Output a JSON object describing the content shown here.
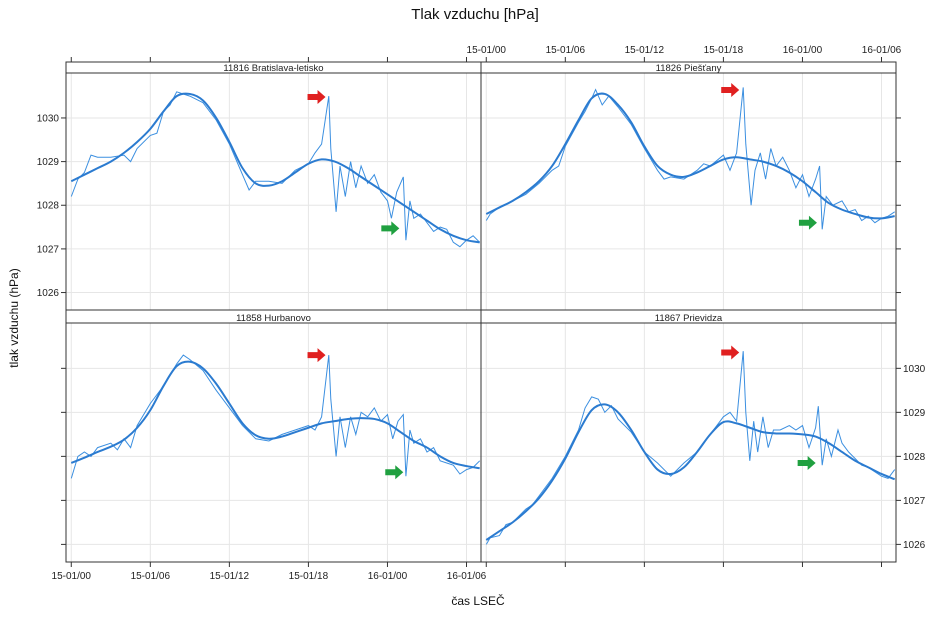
{
  "chart_data": {
    "type": "line",
    "title": "Tlak vzduchu [hPa]",
    "xlabel": "čas LSEČ",
    "ylabel": "tlak vzduchu (hPa)",
    "x_unit": "hours since 15-01/00",
    "xlim": [
      -0.4,
      31.1
    ],
    "ylim": [
      1025.6,
      1031.03
    ],
    "grid": true,
    "x_ticks": [
      0,
      6,
      12,
      18,
      24,
      30
    ],
    "x_tick_labels": [
      "15-01/00",
      "15-01/06",
      "15-01/12",
      "15-01/18",
      "16-01/00",
      "16-01/06"
    ],
    "y_ticks": [
      1026,
      1027,
      1028,
      1029,
      1030
    ],
    "y_tick_labels": [
      "1026",
      "1027",
      "1028",
      "1029",
      "1030"
    ],
    "colors": {
      "raw": "#3b8fe0",
      "smooth": "#2b7bd0",
      "arrow_up_event": "#e02020",
      "arrow_down_event": "#20a040"
    },
    "panels": [
      {
        "name": "11816 Bratislava-letisko",
        "smooth": [
          1028.55,
          1028.7,
          1028.85,
          1029.0,
          1029.2,
          1029.45,
          1029.75,
          1030.15,
          1030.5,
          1030.55,
          1030.4,
          1030.0,
          1029.45,
          1028.85,
          1028.5,
          1028.45,
          1028.55,
          1028.75,
          1028.95,
          1029.05,
          1029.0,
          1028.85,
          1028.65,
          1028.45,
          1028.25,
          1028.05,
          1027.85,
          1027.65,
          1027.45,
          1027.3,
          1027.2,
          1027.15
        ],
        "raw": [
          [
            0,
            1028.2
          ],
          [
            0.5,
            1028.6
          ],
          [
            1,
            1028.75
          ],
          [
            1.5,
            1029.15
          ],
          [
            2,
            1029.1
          ],
          [
            3,
            1029.1
          ],
          [
            4,
            1029.15
          ],
          [
            4.5,
            1029.0
          ],
          [
            5,
            1029.3
          ],
          [
            6,
            1029.6
          ],
          [
            6.5,
            1029.65
          ],
          [
            7,
            1030.15
          ],
          [
            7.5,
            1030.3
          ],
          [
            8,
            1030.6
          ],
          [
            8.5,
            1030.55
          ],
          [
            9,
            1030.5
          ],
          [
            10,
            1030.35
          ],
          [
            11,
            1029.95
          ],
          [
            12,
            1029.4
          ],
          [
            13,
            1028.7
          ],
          [
            13.5,
            1028.35
          ],
          [
            14,
            1028.55
          ],
          [
            15,
            1028.55
          ],
          [
            16,
            1028.5
          ],
          [
            17,
            1028.8
          ],
          [
            18,
            1028.95
          ],
          [
            18.5,
            1029.2
          ],
          [
            19,
            1029.4
          ],
          [
            19.55,
            1030.5
          ],
          [
            19.7,
            1029.3
          ],
          [
            20.1,
            1027.85
          ],
          [
            20.4,
            1028.9
          ],
          [
            20.8,
            1028.2
          ],
          [
            21.2,
            1029.0
          ],
          [
            21.6,
            1028.4
          ],
          [
            22,
            1028.9
          ],
          [
            22.5,
            1028.5
          ],
          [
            23,
            1028.7
          ],
          [
            23.5,
            1028.3
          ],
          [
            24,
            1028.1
          ],
          [
            24.3,
            1027.7
          ],
          [
            24.7,
            1028.3
          ],
          [
            25.2,
            1028.65
          ],
          [
            25.4,
            1027.2
          ],
          [
            25.7,
            1028.1
          ],
          [
            26,
            1027.7
          ],
          [
            26.5,
            1027.8
          ],
          [
            27,
            1027.6
          ],
          [
            27.5,
            1027.4
          ],
          [
            28,
            1027.5
          ],
          [
            28.5,
            1027.45
          ],
          [
            29,
            1027.15
          ],
          [
            29.5,
            1027.05
          ],
          [
            30,
            1027.2
          ],
          [
            30.5,
            1027.3
          ],
          [
            31,
            1027.15
          ]
        ],
        "red_arrow": [
          19.3,
          1030.48
        ],
        "green_arrow": [
          24.9,
          1027.47
        ]
      },
      {
        "name": "11826 Piešťany",
        "smooth": [
          1027.8,
          1027.95,
          1028.1,
          1028.3,
          1028.55,
          1028.9,
          1029.4,
          1029.95,
          1030.45,
          1030.55,
          1030.3,
          1029.9,
          1029.35,
          1028.9,
          1028.7,
          1028.65,
          1028.75,
          1028.9,
          1029.05,
          1029.1,
          1029.05,
          1029.0,
          1028.9,
          1028.75,
          1028.55,
          1028.3,
          1028.05,
          1027.9,
          1027.8,
          1027.72,
          1027.7,
          1027.75
        ],
        "raw": [
          [
            0,
            1027.65
          ],
          [
            0.3,
            1027.8
          ],
          [
            1,
            1027.95
          ],
          [
            2,
            1028.1
          ],
          [
            3,
            1028.25
          ],
          [
            4,
            1028.5
          ],
          [
            5,
            1028.8
          ],
          [
            5.5,
            1028.9
          ],
          [
            6,
            1029.35
          ],
          [
            7,
            1029.9
          ],
          [
            7.5,
            1030.15
          ],
          [
            8,
            1030.45
          ],
          [
            8.3,
            1030.65
          ],
          [
            8.8,
            1030.3
          ],
          [
            9.3,
            1030.5
          ],
          [
            10,
            1030.25
          ],
          [
            11,
            1029.85
          ],
          [
            12,
            1029.3
          ],
          [
            13,
            1028.8
          ],
          [
            13.5,
            1028.6
          ],
          [
            14,
            1028.65
          ],
          [
            15,
            1028.6
          ],
          [
            16,
            1028.8
          ],
          [
            16.5,
            1028.95
          ],
          [
            17,
            1028.9
          ],
          [
            18,
            1029.15
          ],
          [
            18.5,
            1028.8
          ],
          [
            19,
            1029.2
          ],
          [
            19.5,
            1030.7
          ],
          [
            19.7,
            1029.4
          ],
          [
            20.1,
            1028.0
          ],
          [
            20.4,
            1028.8
          ],
          [
            20.8,
            1029.2
          ],
          [
            21.2,
            1028.6
          ],
          [
            21.6,
            1029.3
          ],
          [
            22,
            1028.9
          ],
          [
            22.5,
            1029.1
          ],
          [
            23,
            1028.8
          ],
          [
            23.5,
            1028.4
          ],
          [
            24,
            1028.7
          ],
          [
            24.5,
            1028.2
          ],
          [
            25,
            1028.6
          ],
          [
            25.3,
            1028.9
          ],
          [
            25.5,
            1027.45
          ],
          [
            25.8,
            1028.2
          ],
          [
            26.3,
            1028.0
          ],
          [
            27,
            1028.1
          ],
          [
            27.5,
            1027.85
          ],
          [
            28,
            1027.9
          ],
          [
            28.5,
            1027.65
          ],
          [
            29,
            1027.75
          ],
          [
            29.5,
            1027.6
          ],
          [
            30,
            1027.7
          ],
          [
            30.5,
            1027.75
          ],
          [
            31,
            1027.85
          ]
        ],
        "red_arrow": [
          19.2,
          1030.64
        ],
        "green_arrow": [
          25.1,
          1027.6
        ]
      },
      {
        "name": "11858 Hurbanovo",
        "smooth": [
          1027.85,
          1027.97,
          1028.1,
          1028.22,
          1028.38,
          1028.65,
          1029.05,
          1029.6,
          1030.05,
          1030.15,
          1030.0,
          1029.65,
          1029.2,
          1028.75,
          1028.48,
          1028.4,
          1028.45,
          1028.55,
          1028.65,
          1028.75,
          1028.8,
          1028.85,
          1028.87,
          1028.85,
          1028.75,
          1028.55,
          1028.35,
          1028.2,
          1028.0,
          1027.85,
          1027.78,
          1027.73
        ],
        "raw": [
          [
            0,
            1027.5
          ],
          [
            0.5,
            1028.0
          ],
          [
            1,
            1028.1
          ],
          [
            1.5,
            1028.0
          ],
          [
            2,
            1028.2
          ],
          [
            3,
            1028.3
          ],
          [
            3.5,
            1028.15
          ],
          [
            4,
            1028.4
          ],
          [
            4.5,
            1028.2
          ],
          [
            5,
            1028.7
          ],
          [
            6,
            1029.2
          ],
          [
            7,
            1029.6
          ],
          [
            8,
            1030.1
          ],
          [
            8.5,
            1030.3
          ],
          [
            9,
            1030.2
          ],
          [
            10,
            1029.95
          ],
          [
            11,
            1029.5
          ],
          [
            12,
            1029.1
          ],
          [
            13,
            1028.7
          ],
          [
            14,
            1028.4
          ],
          [
            15,
            1028.35
          ],
          [
            16,
            1028.5
          ],
          [
            17,
            1028.6
          ],
          [
            18,
            1028.7
          ],
          [
            18.5,
            1028.6
          ],
          [
            19,
            1028.9
          ],
          [
            19.55,
            1030.3
          ],
          [
            19.7,
            1029.3
          ],
          [
            20.1,
            1028.0
          ],
          [
            20.4,
            1028.9
          ],
          [
            20.8,
            1028.2
          ],
          [
            21.2,
            1028.9
          ],
          [
            21.6,
            1028.5
          ],
          [
            22,
            1029.0
          ],
          [
            22.5,
            1028.9
          ],
          [
            23,
            1029.1
          ],
          [
            23.5,
            1028.8
          ],
          [
            24,
            1028.95
          ],
          [
            24.4,
            1028.4
          ],
          [
            24.8,
            1028.8
          ],
          [
            25.2,
            1028.95
          ],
          [
            25.4,
            1027.55
          ],
          [
            25.7,
            1028.6
          ],
          [
            26,
            1028.3
          ],
          [
            26.5,
            1028.4
          ],
          [
            27,
            1028.1
          ],
          [
            27.5,
            1028.2
          ],
          [
            28,
            1027.9
          ],
          [
            28.5,
            1027.85
          ],
          [
            29,
            1027.8
          ],
          [
            29.5,
            1027.6
          ],
          [
            30,
            1027.7
          ],
          [
            30.5,
            1027.75
          ],
          [
            31,
            1027.9
          ]
        ],
        "red_arrow": [
          19.3,
          1030.3
        ],
        "green_arrow": [
          25.2,
          1027.64
        ]
      },
      {
        "name": "11867 Prievidza",
        "smooth": [
          1026.1,
          1026.3,
          1026.5,
          1026.75,
          1027.05,
          1027.45,
          1027.95,
          1028.55,
          1029.05,
          1029.18,
          1029.0,
          1028.6,
          1028.1,
          1027.7,
          1027.6,
          1027.75,
          1028.1,
          1028.5,
          1028.78,
          1028.75,
          1028.65,
          1028.55,
          1028.52,
          1028.52,
          1028.5,
          1028.45,
          1028.3,
          1028.1,
          1027.9,
          1027.75,
          1027.6,
          1027.48
        ],
        "raw": [
          [
            0,
            1026.0
          ],
          [
            0.3,
            1026.15
          ],
          [
            1,
            1026.2
          ],
          [
            1.5,
            1026.45
          ],
          [
            2,
            1026.5
          ],
          [
            3,
            1026.8
          ],
          [
            3.5,
            1026.9
          ],
          [
            4,
            1027.1
          ],
          [
            5,
            1027.5
          ],
          [
            6,
            1028.0
          ],
          [
            7,
            1028.6
          ],
          [
            7.5,
            1029.1
          ],
          [
            8,
            1029.35
          ],
          [
            8.5,
            1029.3
          ],
          [
            9,
            1029.0
          ],
          [
            9.5,
            1029.15
          ],
          [
            10,
            1028.85
          ],
          [
            11,
            1028.55
          ],
          [
            12,
            1028.1
          ],
          [
            13,
            1027.85
          ],
          [
            14,
            1027.55
          ],
          [
            15,
            1027.85
          ],
          [
            16,
            1028.1
          ],
          [
            17,
            1028.5
          ],
          [
            18,
            1028.9
          ],
          [
            18.5,
            1029.0
          ],
          [
            19,
            1028.8
          ],
          [
            19.5,
            1030.39
          ],
          [
            19.7,
            1029.0
          ],
          [
            20,
            1027.9
          ],
          [
            20.3,
            1028.8
          ],
          [
            20.6,
            1028.1
          ],
          [
            21,
            1028.9
          ],
          [
            21.4,
            1028.2
          ],
          [
            21.8,
            1028.6
          ],
          [
            22.3,
            1028.6
          ],
          [
            23,
            1028.7
          ],
          [
            23.5,
            1028.6
          ],
          [
            24,
            1028.7
          ],
          [
            24.5,
            1028.2
          ],
          [
            25,
            1028.65
          ],
          [
            25.2,
            1029.14
          ],
          [
            25.5,
            1027.8
          ],
          [
            25.8,
            1028.4
          ],
          [
            26.2,
            1028.0
          ],
          [
            26.7,
            1028.6
          ],
          [
            27,
            1028.3
          ],
          [
            27.5,
            1028.1
          ],
          [
            28,
            1027.95
          ],
          [
            28.5,
            1027.8
          ],
          [
            29,
            1027.75
          ],
          [
            29.5,
            1027.65
          ],
          [
            30,
            1027.55
          ],
          [
            30.5,
            1027.5
          ],
          [
            31,
            1027.7
          ]
        ],
        "red_arrow": [
          19.2,
          1030.36
        ],
        "green_arrow": [
          25.0,
          1027.85
        ]
      }
    ]
  }
}
